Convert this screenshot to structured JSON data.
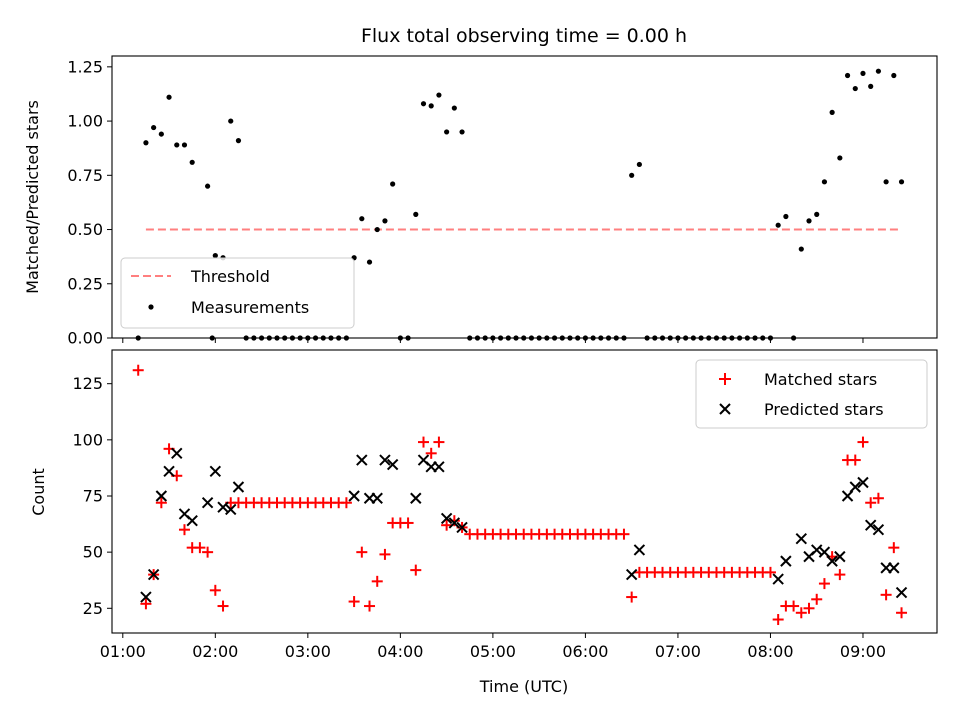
{
  "chart_data": [
    {
      "type": "scatter",
      "title": "Flux total observing time = 0.00 h",
      "xlabel": "",
      "ylabel": "Matched/Predicted stars",
      "xlim": [
        "00:53",
        "09:48"
      ],
      "ylim": [
        0,
        1.3
      ],
      "yticks": [
        0,
        0.25,
        0.5,
        0.75,
        1.0,
        1.25
      ],
      "ytick_labels": [
        "0.00",
        "0.25",
        "0.50",
        "0.75",
        "1.00",
        "1.25"
      ],
      "grid": false,
      "legend_position": "lower-left",
      "threshold": {
        "name": "Threshold",
        "value": 0.5,
        "x_start": "01:15",
        "x_end": "09:25",
        "color": "#ff7f7f",
        "style": "dashed"
      },
      "series": [
        {
          "name": "Measurements",
          "color": "#000000",
          "marker": "dot",
          "points": [
            [
              "01:10",
              0
            ],
            [
              "01:15",
              0.9
            ],
            [
              "01:20",
              0.97
            ],
            [
              "01:25",
              0.94
            ],
            [
              "01:30",
              1.11
            ],
            [
              "01:35",
              0.89
            ],
            [
              "01:40",
              0.89
            ],
            [
              "01:45",
              0.81
            ],
            [
              "01:55",
              0.7
            ],
            [
              "01:58",
              0
            ],
            [
              "02:00",
              0.38
            ],
            [
              "02:05",
              0.37
            ],
            [
              "02:10",
              1.0
            ],
            [
              "02:15",
              0.91
            ],
            [
              "02:20",
              0
            ],
            [
              "02:25",
              0
            ],
            [
              "02:30",
              0
            ],
            [
              "02:35",
              0
            ],
            [
              "02:40",
              0
            ],
            [
              "02:45",
              0
            ],
            [
              "02:50",
              0
            ],
            [
              "02:55",
              0
            ],
            [
              "03:00",
              0
            ],
            [
              "03:05",
              0
            ],
            [
              "03:10",
              0
            ],
            [
              "03:15",
              0
            ],
            [
              "03:20",
              0
            ],
            [
              "03:25",
              0
            ],
            [
              "03:30",
              0.37
            ],
            [
              "03:35",
              0.55
            ],
            [
              "03:40",
              0.35
            ],
            [
              "03:45",
              0.5
            ],
            [
              "03:50",
              0.54
            ],
            [
              "03:55",
              0.71
            ],
            [
              "04:00",
              0
            ],
            [
              "04:05",
              0
            ],
            [
              "04:10",
              0.57
            ],
            [
              "04:15",
              1.08
            ],
            [
              "04:20",
              1.07
            ],
            [
              "04:25",
              1.12
            ],
            [
              "04:30",
              0.95
            ],
            [
              "04:35",
              1.06
            ],
            [
              "04:40",
              0.95
            ],
            [
              "04:45",
              0
            ],
            [
              "04:50",
              0
            ],
            [
              "04:55",
              0
            ],
            [
              "05:00",
              0
            ],
            [
              "05:05",
              0
            ],
            [
              "05:10",
              0
            ],
            [
              "05:15",
              0
            ],
            [
              "05:20",
              0
            ],
            [
              "05:25",
              0
            ],
            [
              "05:30",
              0
            ],
            [
              "05:35",
              0
            ],
            [
              "05:40",
              0
            ],
            [
              "05:45",
              0
            ],
            [
              "05:50",
              0
            ],
            [
              "05:55",
              0
            ],
            [
              "06:00",
              0
            ],
            [
              "06:05",
              0
            ],
            [
              "06:10",
              0
            ],
            [
              "06:15",
              0
            ],
            [
              "06:20",
              0
            ],
            [
              "06:25",
              0
            ],
            [
              "06:30",
              0.75
            ],
            [
              "06:35",
              0.8
            ],
            [
              "06:40",
              0
            ],
            [
              "06:45",
              0
            ],
            [
              "06:50",
              0
            ],
            [
              "06:55",
              0
            ],
            [
              "07:00",
              0
            ],
            [
              "07:05",
              0
            ],
            [
              "07:10",
              0
            ],
            [
              "07:15",
              0
            ],
            [
              "07:20",
              0
            ],
            [
              "07:25",
              0
            ],
            [
              "07:30",
              0
            ],
            [
              "07:35",
              0
            ],
            [
              "07:40",
              0
            ],
            [
              "07:45",
              0
            ],
            [
              "07:50",
              0
            ],
            [
              "07:55",
              0
            ],
            [
              "08:00",
              0
            ],
            [
              "08:05",
              0.52
            ],
            [
              "08:10",
              0.56
            ],
            [
              "08:15",
              0
            ],
            [
              "08:20",
              0.41
            ],
            [
              "08:25",
              0.54
            ],
            [
              "08:30",
              0.57
            ],
            [
              "08:35",
              0.72
            ],
            [
              "08:40",
              1.04
            ],
            [
              "08:45",
              0.83
            ],
            [
              "08:50",
              1.21
            ],
            [
              "08:55",
              1.15
            ],
            [
              "09:00",
              1.22
            ],
            [
              "09:05",
              1.16
            ],
            [
              "09:10",
              1.23
            ],
            [
              "09:15",
              0.72
            ],
            [
              "09:20",
              1.21
            ],
            [
              "09:25",
              0.72
            ]
          ]
        }
      ]
    },
    {
      "type": "scatter",
      "title": "",
      "xlabel": "Time (UTC)",
      "ylabel": "Count",
      "xlim": [
        "00:53",
        "09:48"
      ],
      "ylim": [
        14,
        140
      ],
      "xticks": [
        "01:00",
        "02:00",
        "03:00",
        "04:00",
        "05:00",
        "06:00",
        "07:00",
        "08:00",
        "09:00"
      ],
      "yticks": [
        25,
        50,
        75,
        100,
        125
      ],
      "ytick_labels": [
        "25",
        "50",
        "75",
        "100",
        "125"
      ],
      "grid": false,
      "legend_position": "upper-right",
      "series": [
        {
          "name": "Matched stars",
          "color": "#ff0000",
          "marker": "plus",
          "points": [
            [
              "01:10",
              131
            ],
            [
              "01:15",
              27
            ],
            [
              "01:20",
              40
            ],
            [
              "01:25",
              72
            ],
            [
              "01:30",
              96
            ],
            [
              "01:35",
              84
            ],
            [
              "01:40",
              60
            ],
            [
              "01:45",
              52
            ],
            [
              "01:50",
              52
            ],
            [
              "01:55",
              50
            ],
            [
              "02:00",
              33
            ],
            [
              "02:05",
              26
            ],
            [
              "02:10",
              72
            ],
            [
              "02:15",
              72
            ],
            [
              "02:20",
              72
            ],
            [
              "02:25",
              72
            ],
            [
              "02:30",
              72
            ],
            [
              "02:35",
              72
            ],
            [
              "02:40",
              72
            ],
            [
              "02:45",
              72
            ],
            [
              "02:50",
              72
            ],
            [
              "02:55",
              72
            ],
            [
              "03:00",
              72
            ],
            [
              "03:05",
              72
            ],
            [
              "03:10",
              72
            ],
            [
              "03:15",
              72
            ],
            [
              "03:20",
              72
            ],
            [
              "03:25",
              72
            ],
            [
              "03:30",
              28
            ],
            [
              "03:35",
              50
            ],
            [
              "03:40",
              26
            ],
            [
              "03:45",
              37
            ],
            [
              "03:50",
              49
            ],
            [
              "03:55",
              63
            ],
            [
              "04:00",
              63
            ],
            [
              "04:05",
              63
            ],
            [
              "04:10",
              42
            ],
            [
              "04:15",
              99
            ],
            [
              "04:20",
              94
            ],
            [
              "04:25",
              99
            ],
            [
              "04:30",
              62
            ],
            [
              "04:35",
              64
            ],
            [
              "04:40",
              61
            ],
            [
              "04:45",
              58
            ],
            [
              "04:50",
              58
            ],
            [
              "04:55",
              58
            ],
            [
              "05:00",
              58
            ],
            [
              "05:05",
              58
            ],
            [
              "05:10",
              58
            ],
            [
              "05:15",
              58
            ],
            [
              "05:20",
              58
            ],
            [
              "05:25",
              58
            ],
            [
              "05:30",
              58
            ],
            [
              "05:35",
              58
            ],
            [
              "05:40",
              58
            ],
            [
              "05:45",
              58
            ],
            [
              "05:50",
              58
            ],
            [
              "05:55",
              58
            ],
            [
              "06:00",
              58
            ],
            [
              "06:05",
              58
            ],
            [
              "06:10",
              58
            ],
            [
              "06:15",
              58
            ],
            [
              "06:20",
              58
            ],
            [
              "06:25",
              58
            ],
            [
              "06:30",
              30
            ],
            [
              "06:35",
              41
            ],
            [
              "06:40",
              41
            ],
            [
              "06:45",
              41
            ],
            [
              "06:50",
              41
            ],
            [
              "06:55",
              41
            ],
            [
              "07:00",
              41
            ],
            [
              "07:05",
              41
            ],
            [
              "07:10",
              41
            ],
            [
              "07:15",
              41
            ],
            [
              "07:20",
              41
            ],
            [
              "07:25",
              41
            ],
            [
              "07:30",
              41
            ],
            [
              "07:35",
              41
            ],
            [
              "07:40",
              41
            ],
            [
              "07:45",
              41
            ],
            [
              "07:50",
              41
            ],
            [
              "07:55",
              41
            ],
            [
              "08:00",
              41
            ],
            [
              "08:05",
              20
            ],
            [
              "08:10",
              26
            ],
            [
              "08:15",
              26
            ],
            [
              "08:20",
              23
            ],
            [
              "08:25",
              25
            ],
            [
              "08:30",
              29
            ],
            [
              "08:35",
              36
            ],
            [
              "08:40",
              48
            ],
            [
              "08:45",
              40
            ],
            [
              "08:50",
              91
            ],
            [
              "08:55",
              91
            ],
            [
              "09:00",
              99
            ],
            [
              "09:05",
              72
            ],
            [
              "09:10",
              74
            ],
            [
              "09:15",
              31
            ],
            [
              "09:20",
              52
            ],
            [
              "09:25",
              23
            ]
          ]
        },
        {
          "name": "Predicted stars",
          "color": "#000000",
          "marker": "x",
          "points": [
            [
              "01:15",
              30
            ],
            [
              "01:20",
              40
            ],
            [
              "01:25",
              75
            ],
            [
              "01:30",
              86
            ],
            [
              "01:35",
              94
            ],
            [
              "01:40",
              67
            ],
            [
              "01:45",
              64
            ],
            [
              "01:55",
              72
            ],
            [
              "02:00",
              86
            ],
            [
              "02:05",
              70
            ],
            [
              "02:10",
              69
            ],
            [
              "02:15",
              79
            ],
            [
              "03:30",
              75
            ],
            [
              "03:35",
              91
            ],
            [
              "03:40",
              74
            ],
            [
              "03:45",
              74
            ],
            [
              "03:50",
              91
            ],
            [
              "03:55",
              89
            ],
            [
              "04:10",
              74
            ],
            [
              "04:15",
              91
            ],
            [
              "04:20",
              88
            ],
            [
              "04:25",
              88
            ],
            [
              "04:30",
              65
            ],
            [
              "04:35",
              63
            ],
            [
              "04:40",
              61
            ],
            [
              "06:30",
              40
            ],
            [
              "06:35",
              51
            ],
            [
              "08:05",
              38
            ],
            [
              "08:10",
              46
            ],
            [
              "08:20",
              56
            ],
            [
              "08:25",
              48
            ],
            [
              "08:30",
              51
            ],
            [
              "08:35",
              50
            ],
            [
              "08:40",
              46
            ],
            [
              "08:45",
              48
            ],
            [
              "08:50",
              75
            ],
            [
              "08:55",
              79
            ],
            [
              "09:00",
              81
            ],
            [
              "09:05",
              62
            ],
            [
              "09:10",
              60
            ],
            [
              "09:15",
              43
            ],
            [
              "09:20",
              43
            ],
            [
              "09:25",
              32
            ]
          ]
        }
      ]
    }
  ]
}
